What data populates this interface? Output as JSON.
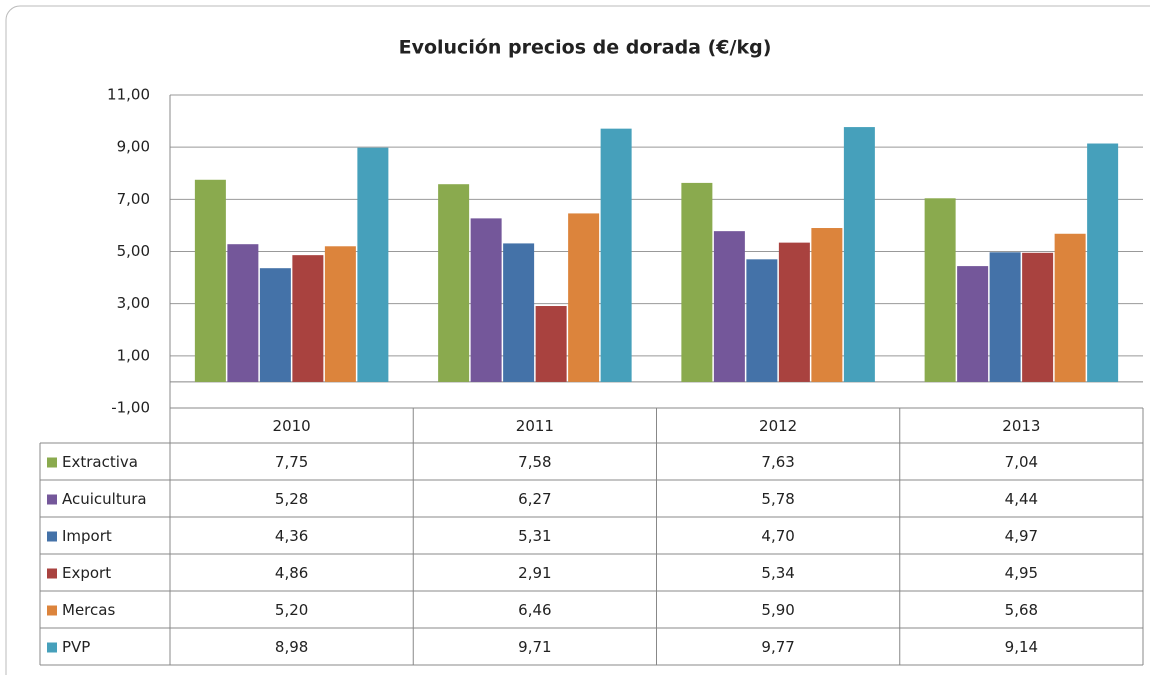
{
  "chart_data": {
    "type": "bar",
    "title": "Evolución precios de dorada  (€/kg)",
    "categories": [
      "2010",
      "2011",
      "2012",
      "2013"
    ],
    "series": [
      {
        "name": "Extractiva",
        "color": "#8aaa4e",
        "values": [
          7.75,
          7.58,
          7.63,
          7.04
        ],
        "value_labels": [
          "7,75",
          "7,58",
          "7,63",
          "7,04"
        ]
      },
      {
        "name": "Acuicultura",
        "color": "#74579a",
        "values": [
          5.28,
          6.27,
          5.78,
          4.44
        ],
        "value_labels": [
          "5,28",
          "6,27",
          "5,78",
          "4,44"
        ]
      },
      {
        "name": "Import",
        "color": "#4472a8",
        "values": [
          4.36,
          5.31,
          4.7,
          4.97
        ],
        "value_labels": [
          "4,36",
          "5,31",
          "4,70",
          "4,97"
        ]
      },
      {
        "name": "Export",
        "color": "#a9423f",
        "values": [
          4.86,
          2.91,
          5.34,
          4.95
        ],
        "value_labels": [
          "4,86",
          "2,91",
          "5,34",
          "4,95"
        ]
      },
      {
        "name": "Mercas",
        "color": "#dc843c",
        "values": [
          5.2,
          6.46,
          5.9,
          5.68
        ],
        "value_labels": [
          "5,20",
          "6,46",
          "5,90",
          "5,68"
        ]
      },
      {
        "name": "PVP",
        "color": "#46a0bb",
        "values": [
          8.98,
          9.71,
          9.77,
          9.14
        ],
        "value_labels": [
          "8,98",
          "9,71",
          "9,77",
          "9,14"
        ]
      }
    ],
    "ylim": [
      -1,
      11
    ],
    "yticks": [
      {
        "value": -1,
        "label": "-1,00"
      },
      {
        "value": 1,
        "label": "1,00"
      },
      {
        "value": 3,
        "label": "3,00"
      },
      {
        "value": 5,
        "label": "5,00"
      },
      {
        "value": 7,
        "label": "7,00"
      },
      {
        "value": 9,
        "label": "9,00"
      },
      {
        "value": 11,
        "label": "11,00"
      }
    ],
    "grid": true
  }
}
